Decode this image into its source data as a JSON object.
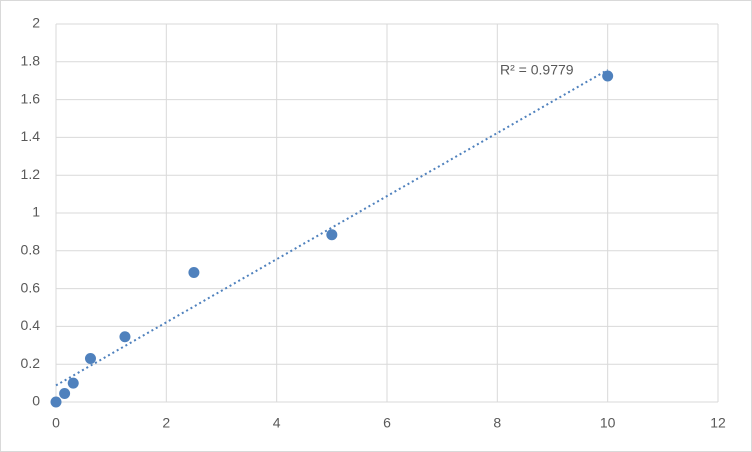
{
  "chart_data": {
    "type": "scatter",
    "annotation": "R² = 0.9779",
    "trendline": "linear",
    "color": "#4f81bd",
    "x": [
      0,
      0.156,
      0.3125,
      0.625,
      1.25,
      2.5,
      5,
      10
    ],
    "values": [
      0,
      0.045,
      0.1,
      0.23,
      0.345,
      0.685,
      0.885,
      1.725
    ],
    "xlim": [
      0,
      12
    ],
    "xticks": [
      0,
      2,
      4,
      6,
      8,
      10,
      12
    ],
    "ylim": [
      0,
      2
    ],
    "yticks": [
      0,
      0.2,
      0.4,
      0.6,
      0.8,
      1,
      1.2,
      1.4,
      1.6,
      1.8,
      2
    ],
    "grid": true
  }
}
